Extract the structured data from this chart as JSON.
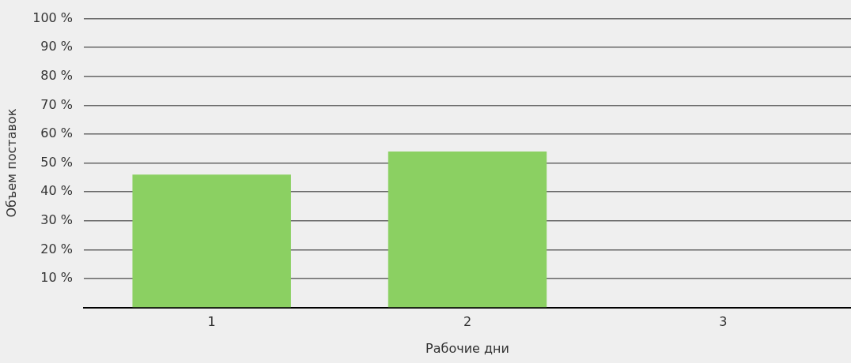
{
  "chart_data": {
    "type": "bar",
    "categories": [
      "1",
      "2",
      "3"
    ],
    "values": [
      46,
      54,
      0
    ],
    "color": "#8bd062",
    "ylim": [
      0,
      100
    ],
    "yticks": [
      {
        "value": 10,
        "label": "10 %"
      },
      {
        "value": 20,
        "label": "20 %"
      },
      {
        "value": 30,
        "label": "30 %"
      },
      {
        "value": 40,
        "label": "40 %"
      },
      {
        "value": 50,
        "label": "50 %"
      },
      {
        "value": 60,
        "label": "60 %"
      },
      {
        "value": 70,
        "label": "70 %"
      },
      {
        "value": 80,
        "label": "80 %"
      },
      {
        "value": 90,
        "label": "90 %"
      },
      {
        "value": 100,
        "label": "100 %"
      }
    ],
    "xlabel": "Рабочие дни",
    "ylabel": "Объем поставок",
    "grid": "y"
  }
}
